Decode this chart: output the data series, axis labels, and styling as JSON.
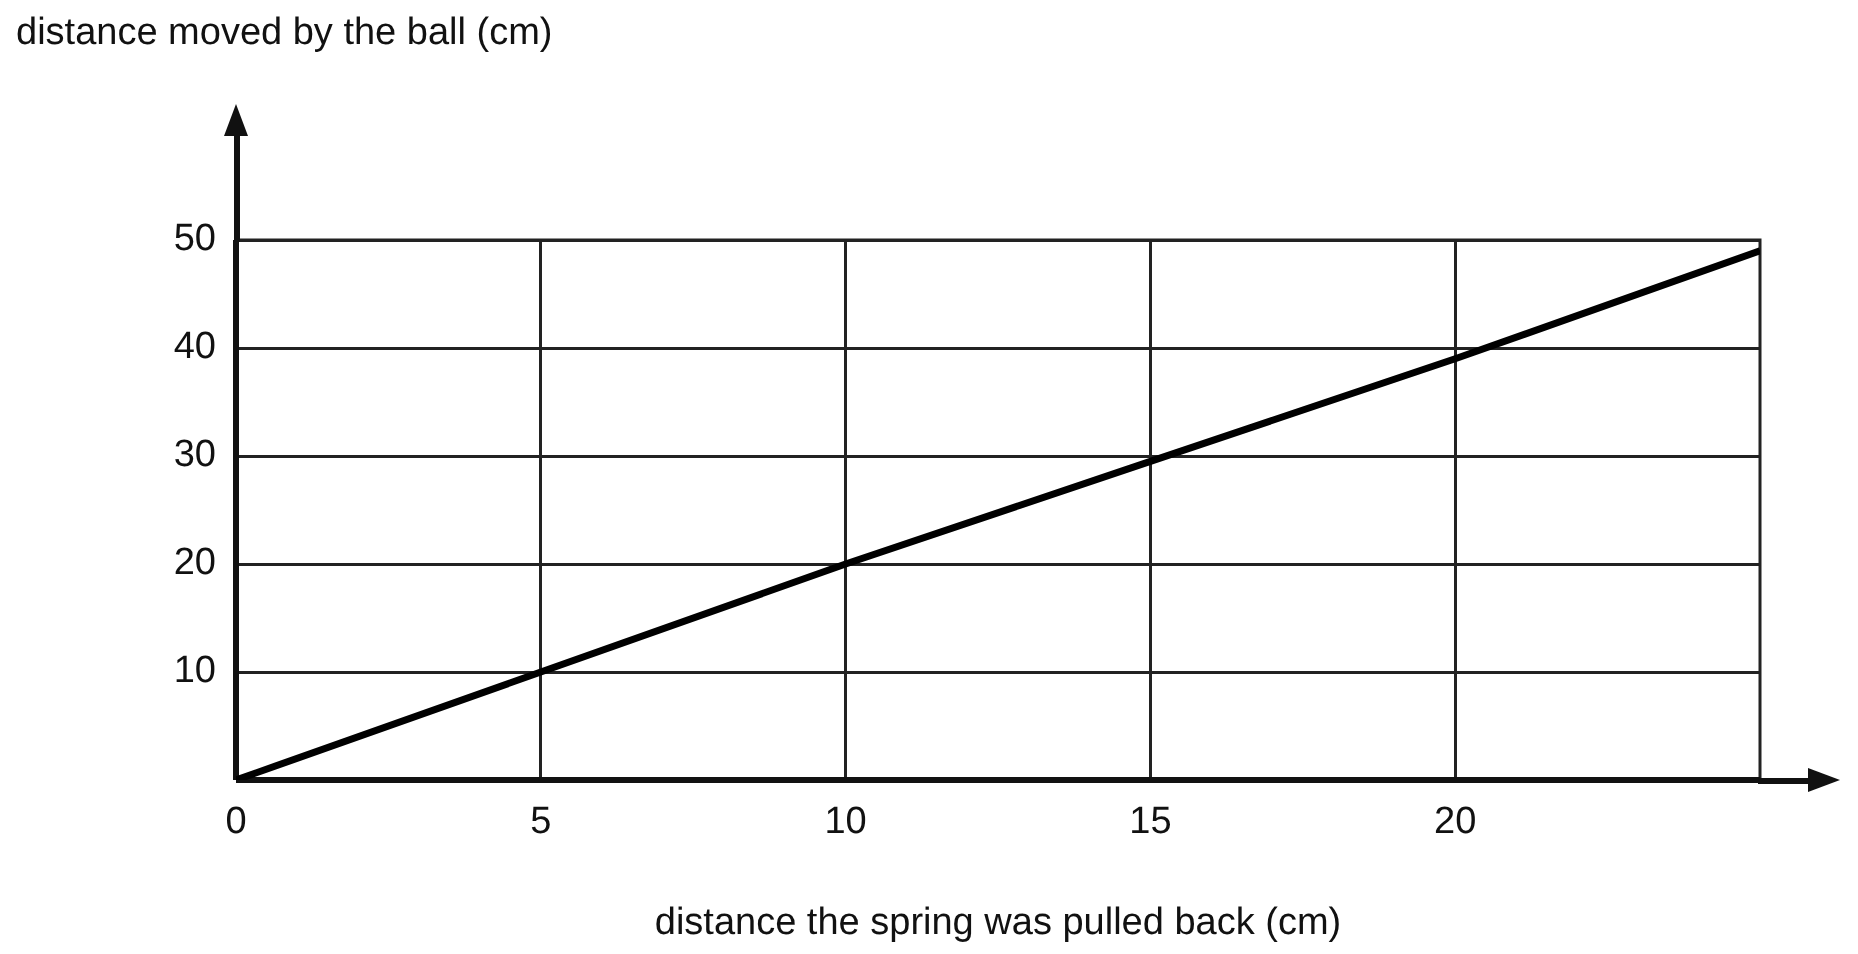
{
  "chart_data": {
    "type": "line",
    "xlabel": "distance the spring was pulled back (cm)",
    "ylabel": "distance moved by the ball (cm)",
    "x": [
      0,
      5,
      10,
      15,
      20,
      25
    ],
    "series": [
      {
        "color": "#000000",
        "values": [
          0,
          10,
          20,
          29.5,
          39,
          49
        ]
      }
    ],
    "xlim": [
      0,
      25
    ],
    "xticks": [
      0,
      5,
      10,
      15,
      20
    ],
    "ylim": [
      0,
      50
    ],
    "yticks": [
      10,
      20,
      30,
      40,
      50
    ],
    "grid": true,
    "legend": false,
    "marker": "none",
    "line_style": "solid"
  }
}
